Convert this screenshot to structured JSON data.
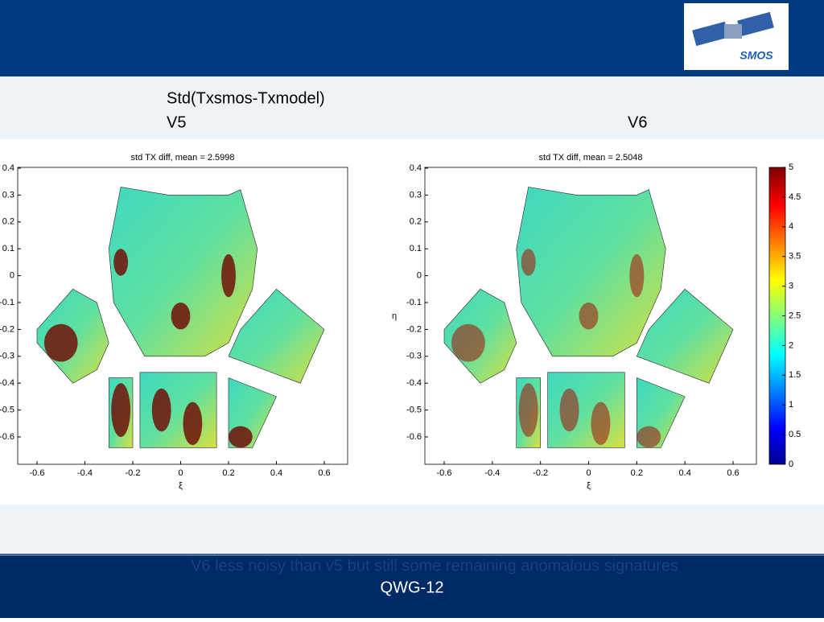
{
  "header": {
    "logo_text": "SMOS"
  },
  "slide": {
    "title": "Std(Txsmos-Txmodel)",
    "left_label": "V5",
    "right_label": "V6"
  },
  "plots": [
    {
      "title": "std TX diff, mean = 2.5998",
      "xlabel": "ξ",
      "xticks": [
        -0.6,
        -0.4,
        -0.2,
        0,
        0.2,
        0.4,
        0.6
      ],
      "yticks": [
        0.4,
        0.3,
        0.2,
        0.1,
        0,
        -0.1,
        -0.2,
        -0.3,
        -0.4,
        -0.5,
        -0.6
      ]
    },
    {
      "title": "std TX diff, mean = 2.5048",
      "xlabel": "ξ",
      "ylabel": "η",
      "xticks": [
        -0.6,
        -0.4,
        -0.2,
        0,
        0.2,
        0.4,
        0.6
      ],
      "yticks": [
        0.4,
        0.3,
        0.2,
        0.1,
        0,
        -0.1,
        -0.2,
        -0.3,
        -0.4,
        -0.5,
        -0.6
      ]
    }
  ],
  "colorbar": {
    "ticks": [
      5,
      4.5,
      4,
      3.5,
      3,
      2.5,
      2,
      1.5,
      1,
      0.5,
      0
    ]
  },
  "footer": {
    "note": "V6 less noisy than v5 but still some remaining anomalous signatures",
    "label": "QWG-12"
  }
}
